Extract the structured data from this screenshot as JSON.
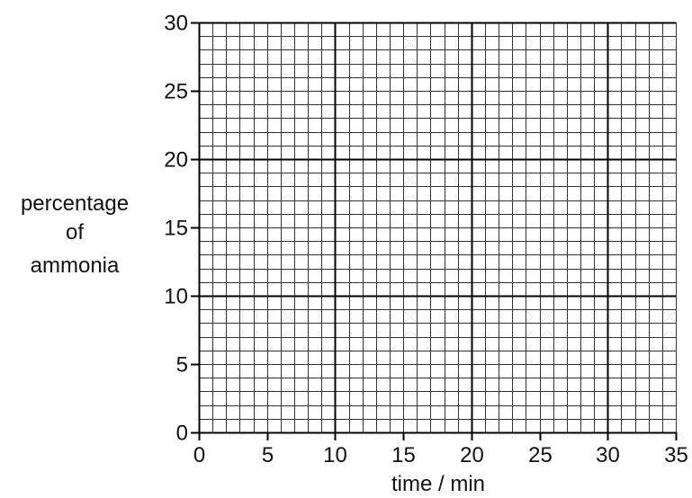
{
  "chart_data": {
    "type": "line",
    "title": "",
    "xlabel": "time / min",
    "ylabel_lines": [
      "percentage",
      "of",
      "ammonia"
    ],
    "xlim": [
      0,
      35
    ],
    "ylim": [
      0,
      30
    ],
    "x_ticks": [
      0,
      5,
      10,
      15,
      20,
      25,
      30,
      35
    ],
    "y_ticks": [
      0,
      5,
      10,
      15,
      20,
      25,
      30
    ],
    "minor_step_x": 1,
    "minor_step_y": 1,
    "major_grid_step": 10,
    "grid": true,
    "series": []
  },
  "colors": {
    "grid_minor": "#333333",
    "grid_major": "#000000",
    "text": "#111111"
  }
}
